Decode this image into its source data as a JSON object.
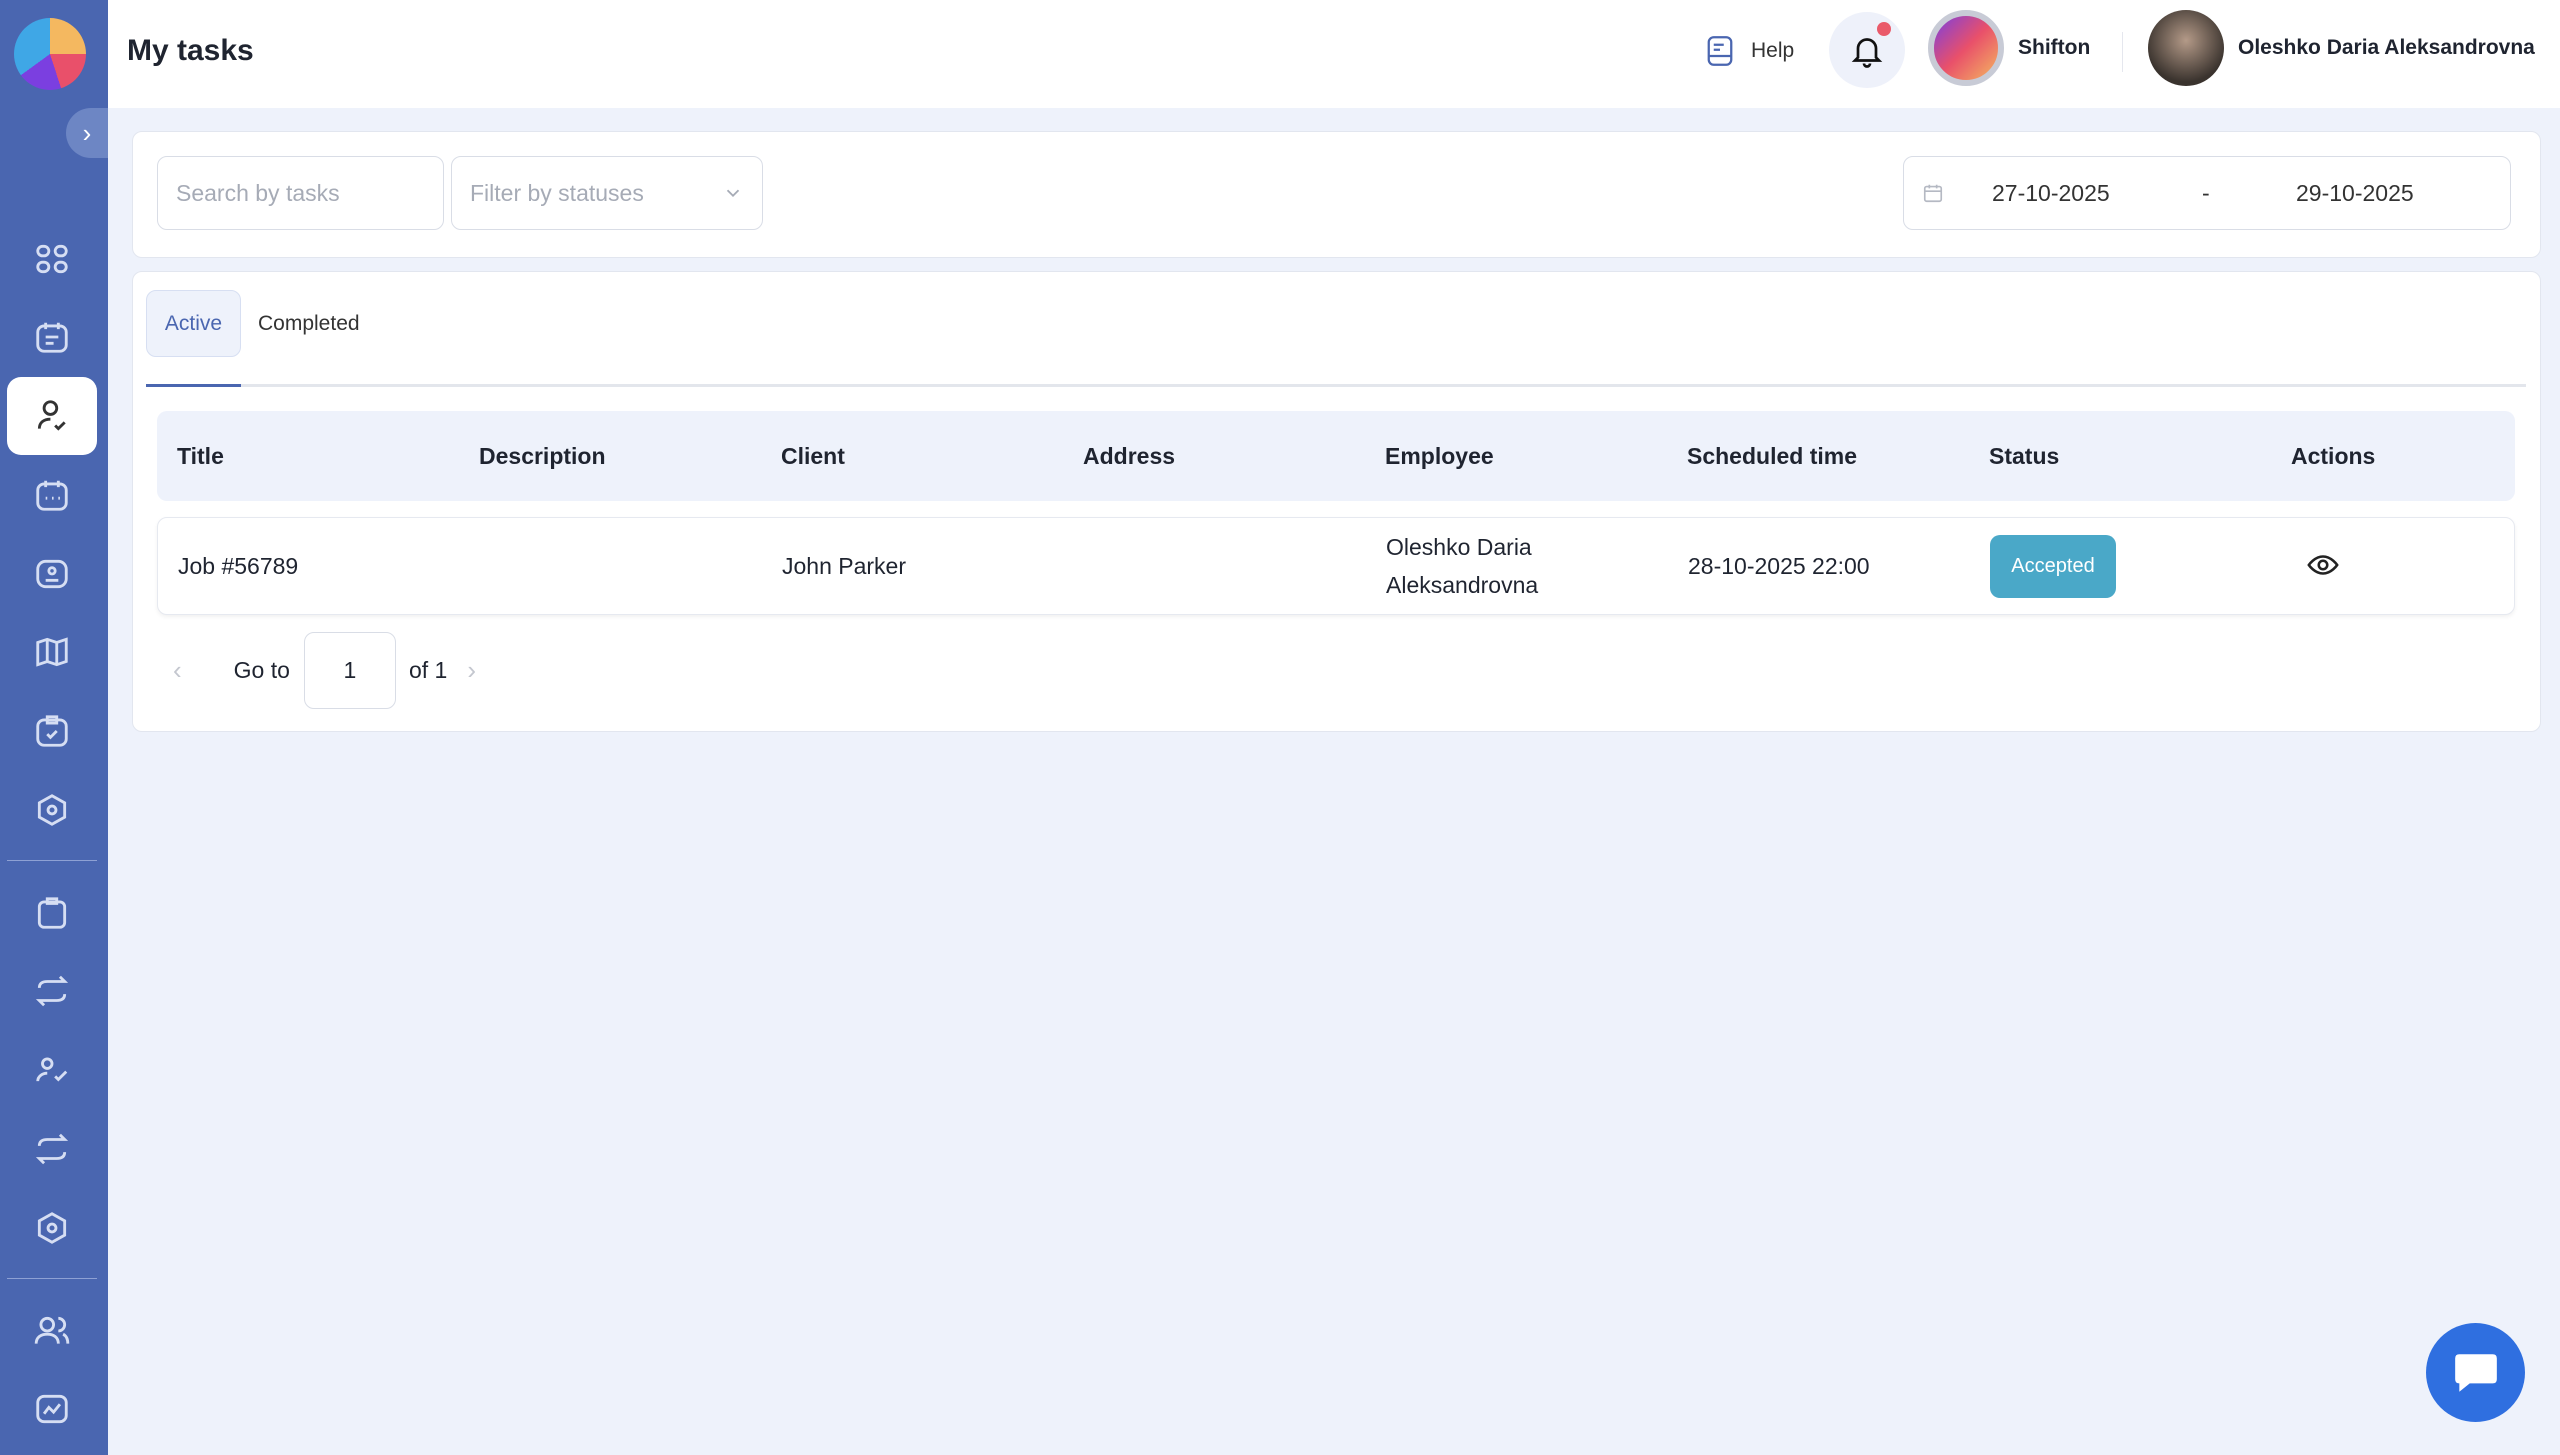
{
  "header": {
    "title": "My tasks",
    "help": "Help",
    "company": "Shifton",
    "user": "Oleshko Daria Aleksandrovna"
  },
  "filters": {
    "search_placeholder": "Search by tasks",
    "status_placeholder": "Filter by statuses",
    "date_from": "27-10-2025",
    "date_sep": "-",
    "date_to": "29-10-2025"
  },
  "tabs": [
    {
      "label": "Active",
      "active": true
    },
    {
      "label": "Completed",
      "active": false
    }
  ],
  "table": {
    "columns": [
      "Title",
      "Description",
      "Client",
      "Address",
      "Employee",
      "Scheduled time",
      "Status",
      "Actions"
    ],
    "rows": [
      {
        "title": "Job #56789",
        "description": "",
        "client": "John Parker",
        "address": "",
        "employee": "Oleshko Daria Aleksandrovna",
        "scheduled": "28-10-2025 22:00",
        "status": "Accepted"
      }
    ]
  },
  "pagination": {
    "goto": "Go to",
    "page": "1",
    "of": "of 1"
  },
  "colors": {
    "sidebar": "#4a66b0",
    "status_accepted": "#4aa8c8",
    "chat": "#2f6fe0"
  }
}
